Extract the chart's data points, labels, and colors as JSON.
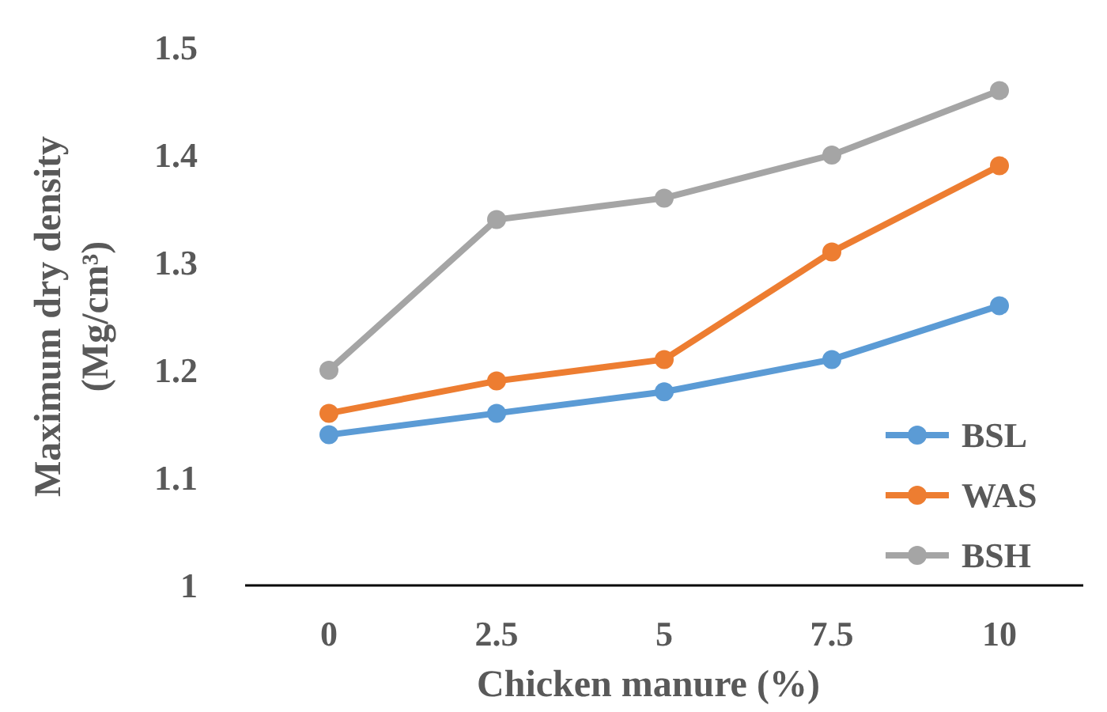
{
  "chart_data": {
    "type": "line",
    "xlabel": "Chicken manure (%)",
    "ylabel": "Maximum dry density\n(Mg/cm³)",
    "categories": [
      "0",
      "2.5",
      "5",
      "7.5",
      "10"
    ],
    "series": [
      {
        "name": "BSL",
        "color": "#5b9bd5",
        "values": [
          1.14,
          1.16,
          1.18,
          1.21,
          1.26
        ]
      },
      {
        "name": "WAS",
        "color": "#ed7d31",
        "values": [
          1.16,
          1.19,
          1.21,
          1.31,
          1.39
        ]
      },
      {
        "name": "BSH",
        "color": "#a5a5a5",
        "values": [
          1.2,
          1.34,
          1.36,
          1.4,
          1.46
        ]
      }
    ],
    "ylim": [
      1,
      1.5
    ],
    "yticks": [
      1,
      1.1,
      1.2,
      1.3,
      1.4,
      1.5
    ],
    "legend": "bottom right",
    "marker": "circle",
    "line_style": "solid",
    "grid": false
  }
}
